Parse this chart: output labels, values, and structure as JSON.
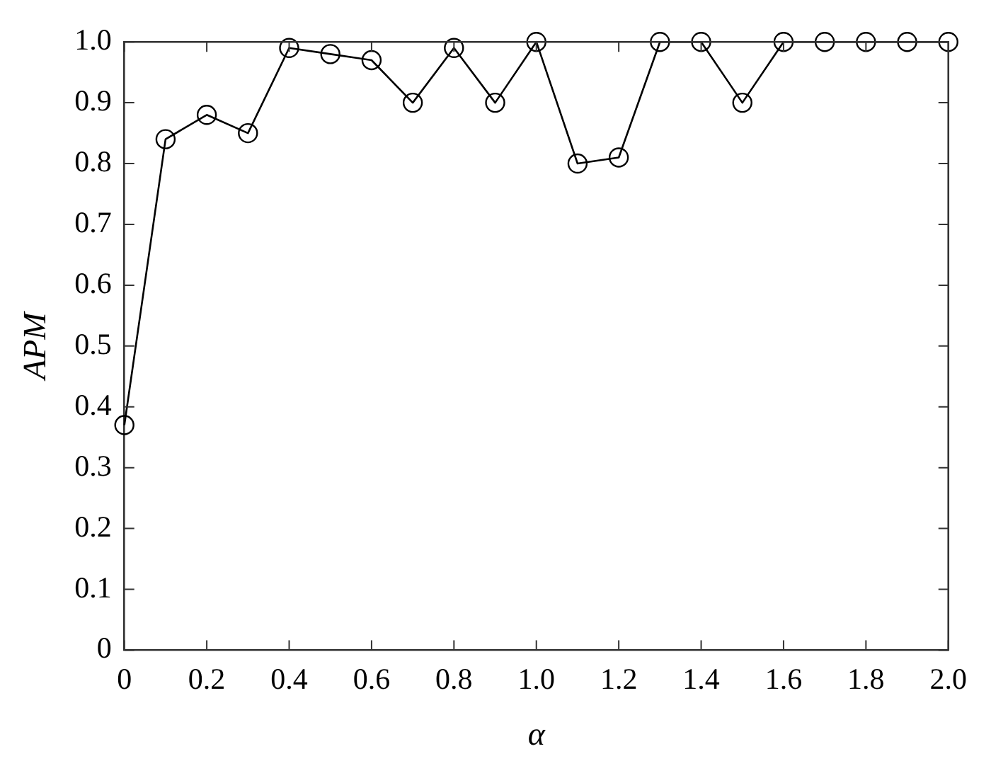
{
  "chart_data": {
    "type": "line",
    "xlabel": "α",
    "ylabel": "APM",
    "x": [
      0,
      0.1,
      0.2,
      0.3,
      0.4,
      0.5,
      0.6,
      0.7,
      0.8,
      0.9,
      1.0,
      1.1,
      1.2,
      1.3,
      1.4,
      1.5,
      1.6,
      1.7,
      1.8,
      1.9,
      2.0
    ],
    "series": [
      {
        "color": "#000000",
        "values": [
          0.37,
          0.84,
          0.88,
          0.85,
          0.99,
          0.98,
          0.97,
          0.9,
          0.99,
          0.9,
          1.0,
          0.8,
          0.81,
          1.0,
          1.0,
          0.9,
          1.0,
          1.0,
          1.0,
          1.0,
          1.0
        ]
      }
    ],
    "xlim": [
      0,
      2
    ],
    "xticks": [
      0,
      {
        "value": 0.2,
        "label": "0.2"
      },
      {
        "value": 0.4,
        "label": "0.4"
      },
      {
        "value": 0.6,
        "label": "0.6"
      },
      {
        "value": 0.8,
        "label": "0.8"
      },
      {
        "value": 1,
        "label": "1.0"
      },
      {
        "value": 1.2,
        "label": "1.2"
      },
      {
        "value": 1.4,
        "label": "1.4"
      },
      {
        "value": 1.6,
        "label": "1.6"
      },
      {
        "value": 1.8,
        "label": "1.8"
      },
      {
        "value": 2,
        "label": "2.0"
      }
    ],
    "ylim": [
      0,
      1
    ],
    "yticks": [
      0,
      0.1,
      0.2,
      0.3,
      0.4,
      0.5,
      0.6,
      0.7,
      0.8,
      0.9,
      {
        "value": 1,
        "label": "1.0"
      }
    ],
    "grid": false,
    "legend": false,
    "marker": "circle",
    "line_style": "solid"
  }
}
